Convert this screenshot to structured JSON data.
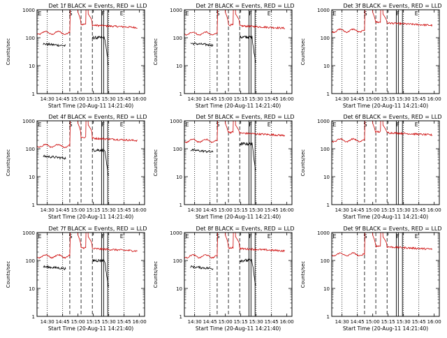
{
  "chart_data": [
    {
      "type": "line",
      "title": "Det 1f BLACK = Events, RED = LLD",
      "events_offset": 1.0,
      "lld_offset": 1.0
    },
    {
      "type": "line",
      "title": "Det 2f BLACK = Events, RED = LLD",
      "events_offset": 1.05,
      "lld_offset": 0.95
    },
    {
      "type": "line",
      "title": "Det 3f BLACK = Events, RED = LLD",
      "events_offset": 0.0,
      "lld_offset": 1.2
    },
    {
      "type": "line",
      "title": "Det 4f BLACK = Events, RED = LLD",
      "events_offset": 0.9,
      "lld_offset": 0.85
    },
    {
      "type": "line",
      "title": "Det 5f BLACK = Events, RED = LLD",
      "events_offset": 1.5,
      "lld_offset": 1.3
    },
    {
      "type": "line",
      "title": "Det 6f BLACK = Events, RED = LLD",
      "events_offset": 0.0,
      "lld_offset": 1.35
    },
    {
      "type": "line",
      "title": "Det 7f BLACK = Events, RED = LLD",
      "events_offset": 1.0,
      "lld_offset": 0.95
    },
    {
      "type": "line",
      "title": "Det 8f BLACK = Events, RED = LLD",
      "events_offset": 1.0,
      "lld_offset": 0.95
    },
    {
      "type": "line",
      "title": "Det 9f BLACK = Events, RED = LLD",
      "events_offset": 0.0,
      "lld_offset": 1.1
    }
  ],
  "shared": {
    "xlabel": "Start Time (20-Aug-11 14:21:40)",
    "ylabel": "Counts/sec",
    "y_scale": "log",
    "ylim": [
      1,
      1000
    ],
    "y_ticks": [
      "1",
      "10",
      "100",
      "1000"
    ],
    "x_ticks": [
      "14:30",
      "14:45",
      "15:00",
      "15:15",
      "15:30",
      "15:45",
      "16:00"
    ],
    "region_markers": [
      "E",
      "S",
      "F",
      "E"
    ],
    "colors": {
      "events": "#000000",
      "lld": "#cc0000"
    }
  }
}
